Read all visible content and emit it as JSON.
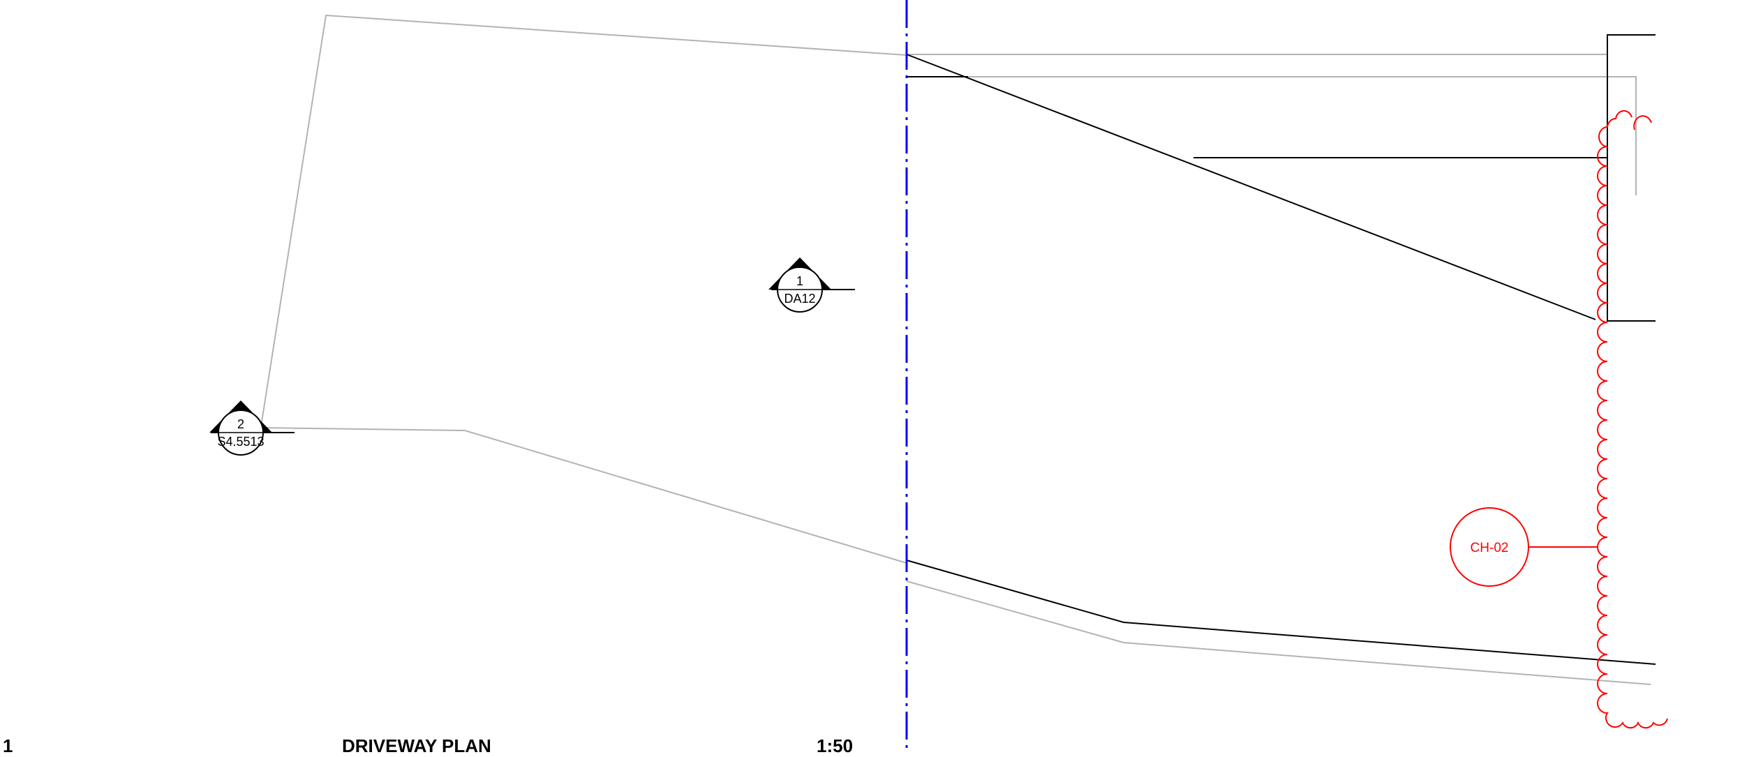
{
  "view": {
    "number": "1",
    "title": "DRIVEWAY PLAN",
    "scale": "1:50"
  },
  "section_markers": [
    {
      "id": "1",
      "sheet": "DA12"
    },
    {
      "id": "2",
      "sheet": "S4.5513"
    }
  ],
  "revision_tag": {
    "label": "CH-02"
  },
  "colors": {
    "revision": "#ff0000",
    "centerline": "#0000ff",
    "linework": "#000000",
    "faint_linework": "#b3b3b3"
  }
}
